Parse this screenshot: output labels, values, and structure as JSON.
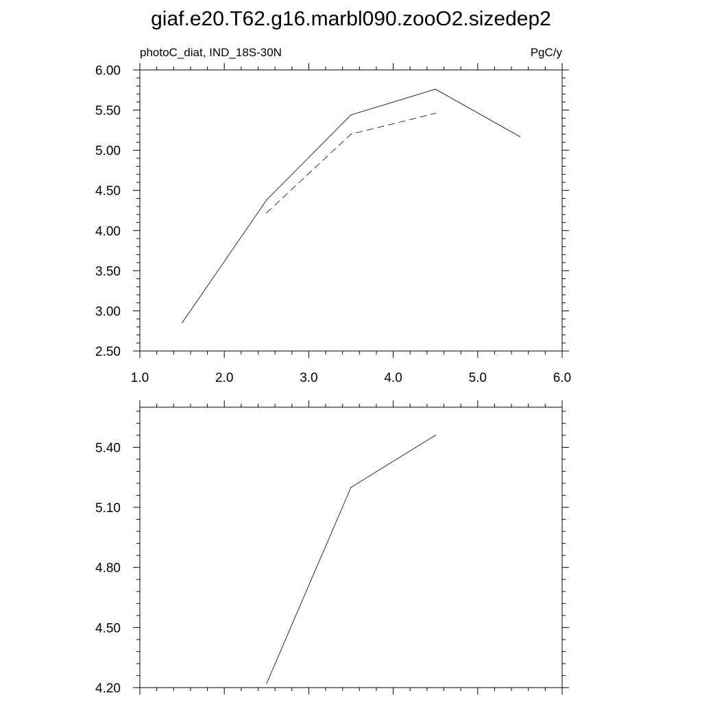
{
  "title": "giaf.e20.T62.g16.marbl090.zooO2.sizedep2",
  "chart_data": [
    {
      "type": "line",
      "left_label": "photoC_diat, IND_18S-30N",
      "right_label": "PgC/y",
      "xlim": [
        1.0,
        6.0
      ],
      "ylim": [
        2.5,
        6.0
      ],
      "x_ticks": [
        1.0,
        2.0,
        3.0,
        4.0,
        5.0,
        6.0
      ],
      "x_tick_labels": [
        "1.0",
        "2.0",
        "3.0",
        "4.0",
        "5.0",
        "6.0"
      ],
      "y_ticks": [
        2.5,
        3.0,
        3.5,
        4.0,
        4.5,
        5.0,
        5.5,
        6.0
      ],
      "y_tick_labels": [
        "2.50",
        "3.00",
        "3.50",
        "4.00",
        "4.50",
        "5.00",
        "5.50",
        "6.00"
      ],
      "grid": false,
      "series": [
        {
          "style": "solid",
          "x": [
            1.5,
            2.5,
            3.5,
            4.5,
            5.5
          ],
          "y": [
            2.85,
            4.38,
            5.44,
            5.76,
            5.17
          ]
        },
        {
          "style": "dashed",
          "x": [
            2.5,
            3.5,
            4.5
          ],
          "y": [
            4.22,
            5.2,
            5.46
          ]
        }
      ]
    },
    {
      "type": "line",
      "xlim": [
        1.0,
        6.0
      ],
      "ylim": [
        4.2,
        5.6
      ],
      "x_ticks": [
        1.0,
        2.0,
        3.0,
        4.0,
        5.0,
        6.0
      ],
      "y_ticks": [
        4.2,
        4.5,
        4.8,
        5.1,
        5.4
      ],
      "y_tick_labels": [
        "4.20",
        "4.50",
        "4.80",
        "5.10",
        "5.40"
      ],
      "grid": false,
      "series": [
        {
          "style": "solid",
          "x": [
            2.5,
            3.5,
            4.5
          ],
          "y": [
            4.22,
            5.2,
            5.46
          ]
        }
      ]
    }
  ]
}
